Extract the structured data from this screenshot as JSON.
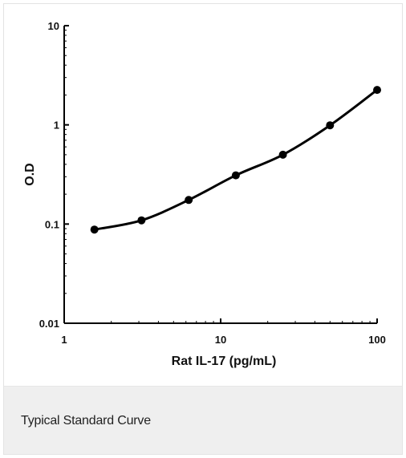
{
  "chart_data": {
    "type": "line",
    "x_scale": "log",
    "y_scale": "log",
    "xlabel": "Rat IL-17 (pg/mL)",
    "ylabel": "O.D",
    "xlim": [
      1,
      100
    ],
    "ylim": [
      0.01,
      10
    ],
    "x_ticks": [
      {
        "value": 1,
        "label": "1"
      },
      {
        "value": 10,
        "label": "10"
      },
      {
        "value": 100,
        "label": "100"
      }
    ],
    "y_ticks": [
      {
        "value": 10,
        "label": "10"
      },
      {
        "value": 1,
        "label": "1"
      },
      {
        "value": 0.1,
        "label": "0.1"
      },
      {
        "value": 0.01,
        "label": "0.01"
      }
    ],
    "grid": false,
    "legend": "none",
    "line_color": "#000000",
    "series": [
      {
        "x": [
          1.56,
          3.12,
          6.25,
          12.5,
          25,
          50,
          100
        ],
        "y": [
          0.088,
          0.109,
          0.175,
          0.31,
          0.5,
          0.99,
          2.25
        ]
      }
    ]
  },
  "caption": {
    "text": "Typical Standard Curve"
  }
}
